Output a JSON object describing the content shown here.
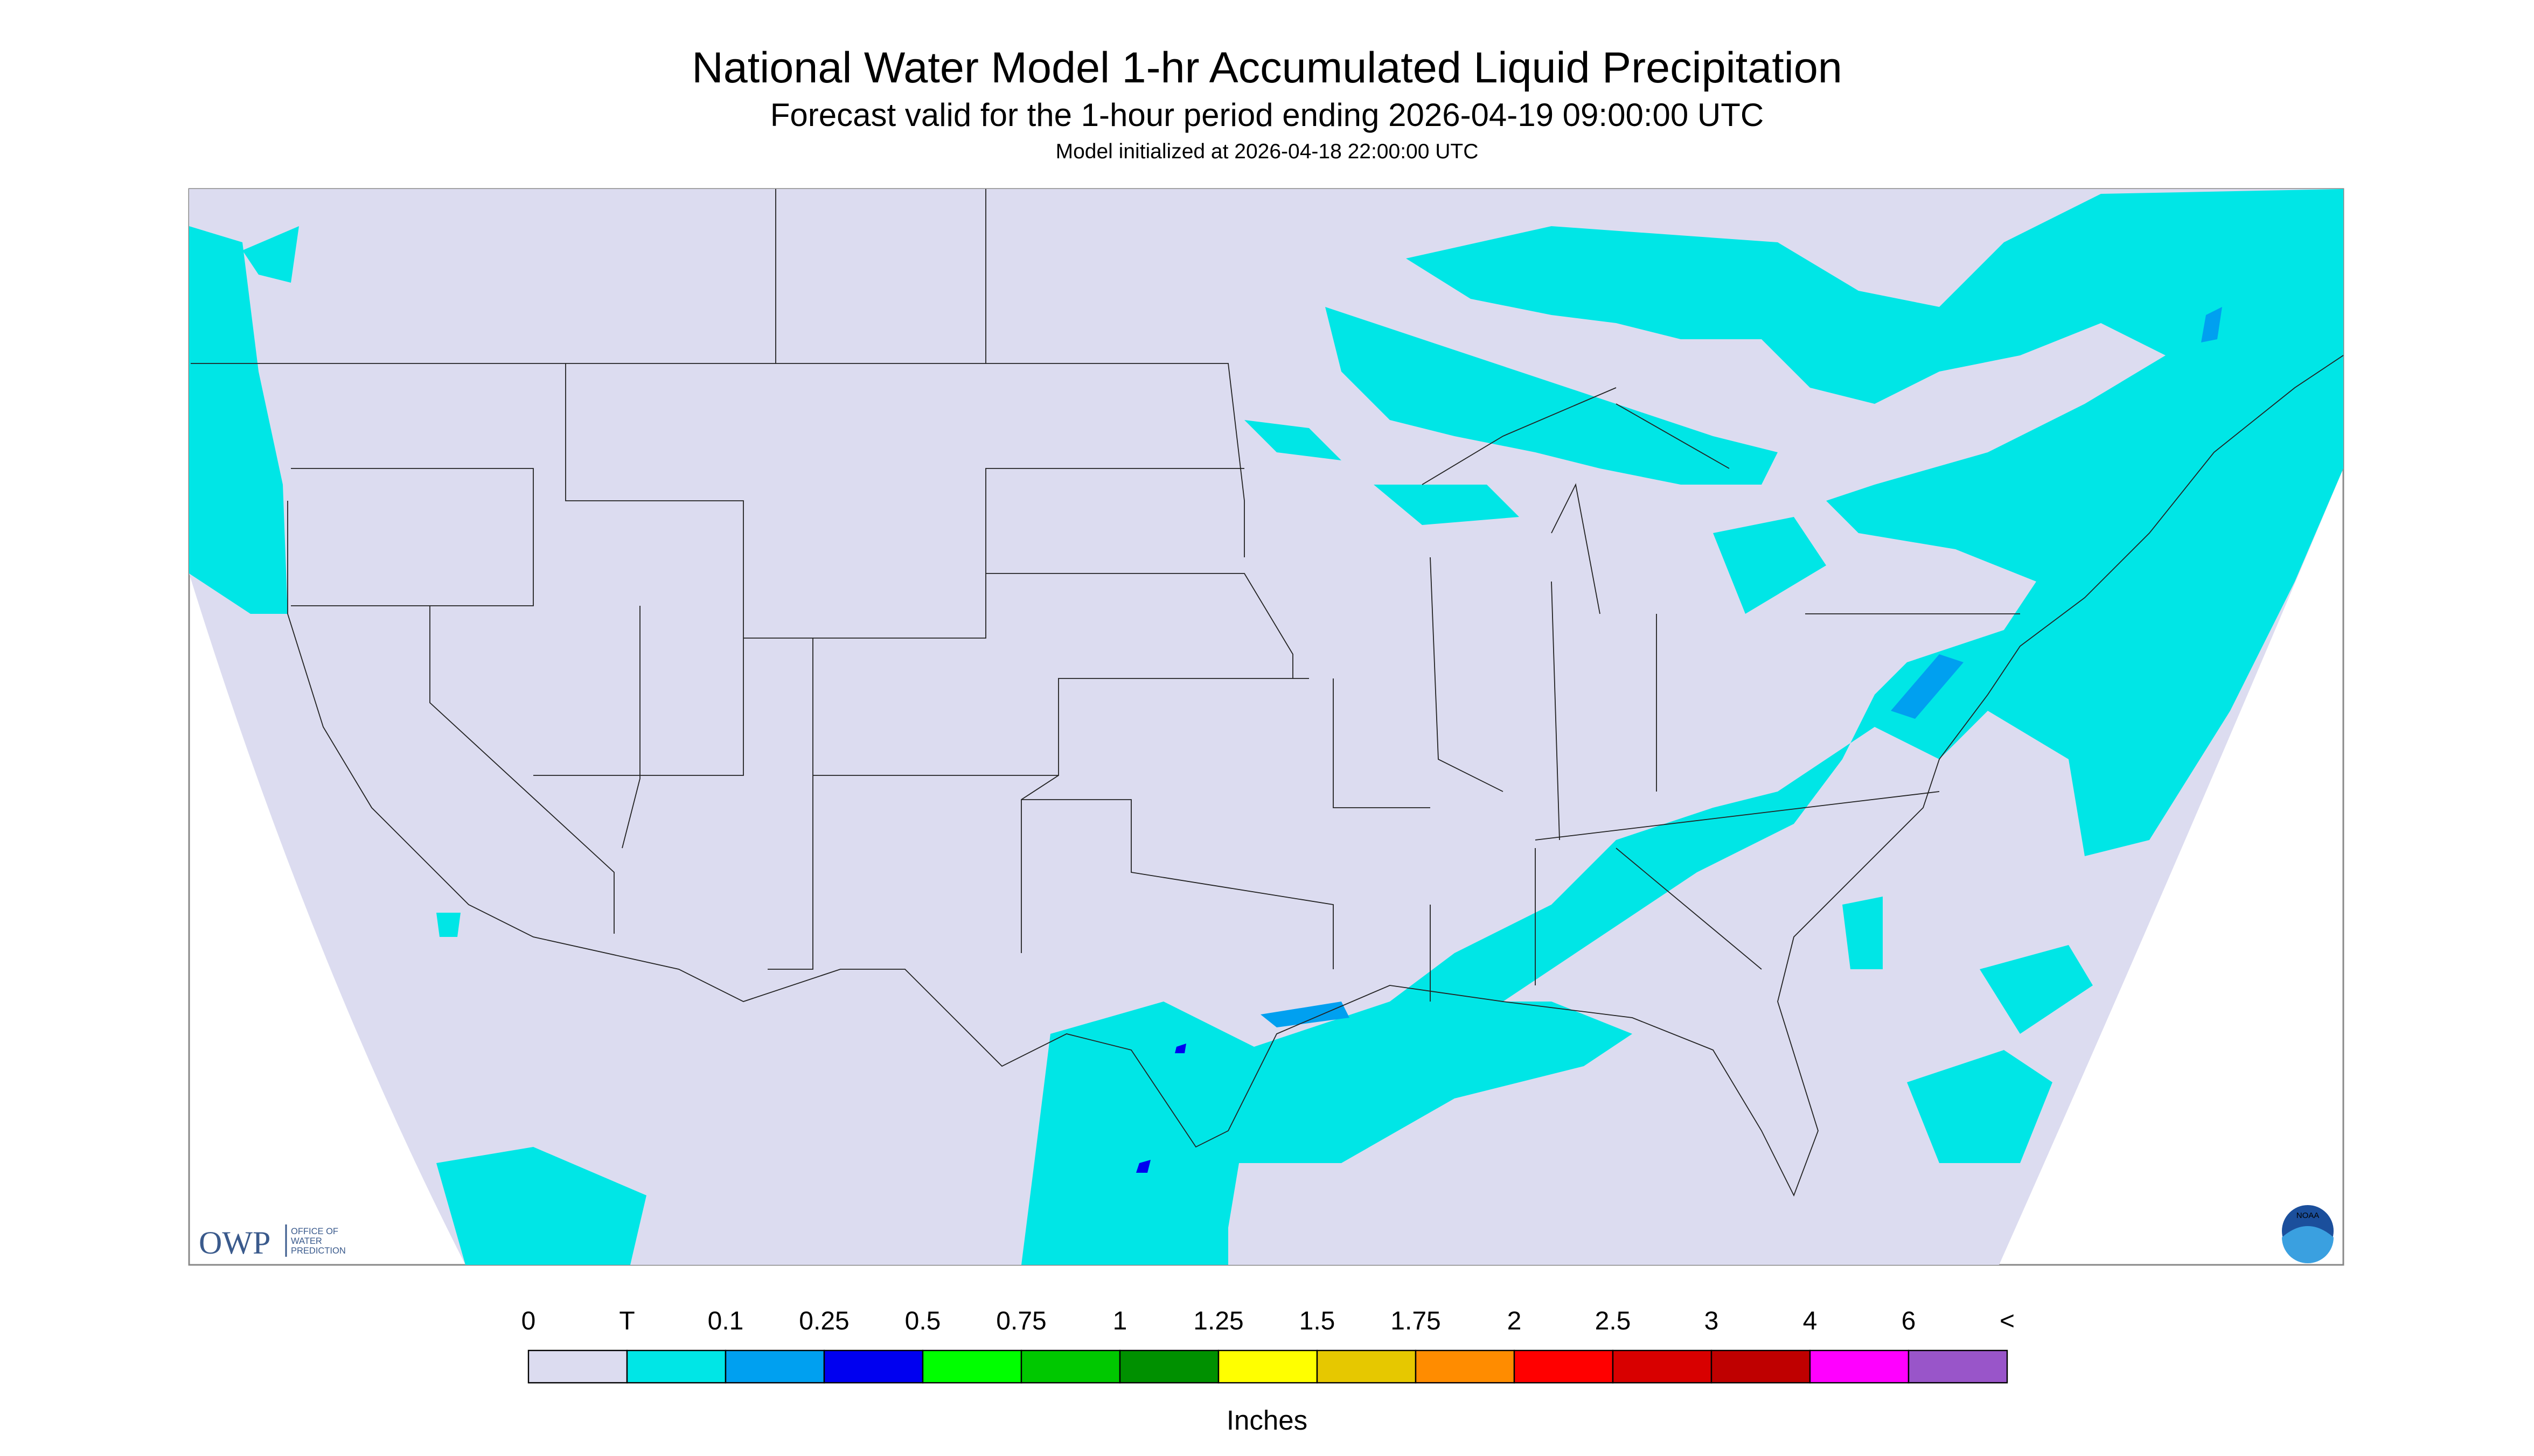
{
  "header": {
    "title": "National Water Model 1-hr Accumulated Liquid Precipitation",
    "subtitle": "Forecast valid for the 1-hour period ending 2026-04-19 09:00:00 UTC",
    "note": "Model initialized at 2026-04-18 22:00:00 UTC"
  },
  "logos": {
    "owp": "OWP",
    "owp_lines": [
      "OFFICE OF",
      "WATER",
      "PREDICTION"
    ],
    "noaa": "NOAA"
  },
  "legend": {
    "labels": [
      "0",
      "T",
      "0.1",
      "0.25",
      "0.5",
      "0.75",
      "1",
      "1.25",
      "1.5",
      "1.75",
      "2",
      "2.5",
      "3",
      "4",
      "6",
      "<"
    ],
    "colors": [
      "#dcdcf0",
      "#00e6e6",
      "#00a0f0",
      "#0000f0",
      "#00ff00",
      "#00c800",
      "#009000",
      "#ffff00",
      "#e6c800",
      "#ff8c00",
      "#ff0000",
      "#d80000",
      "#bf0000",
      "#ff00ff",
      "#9955c9"
    ],
    "units": "Inches"
  }
}
